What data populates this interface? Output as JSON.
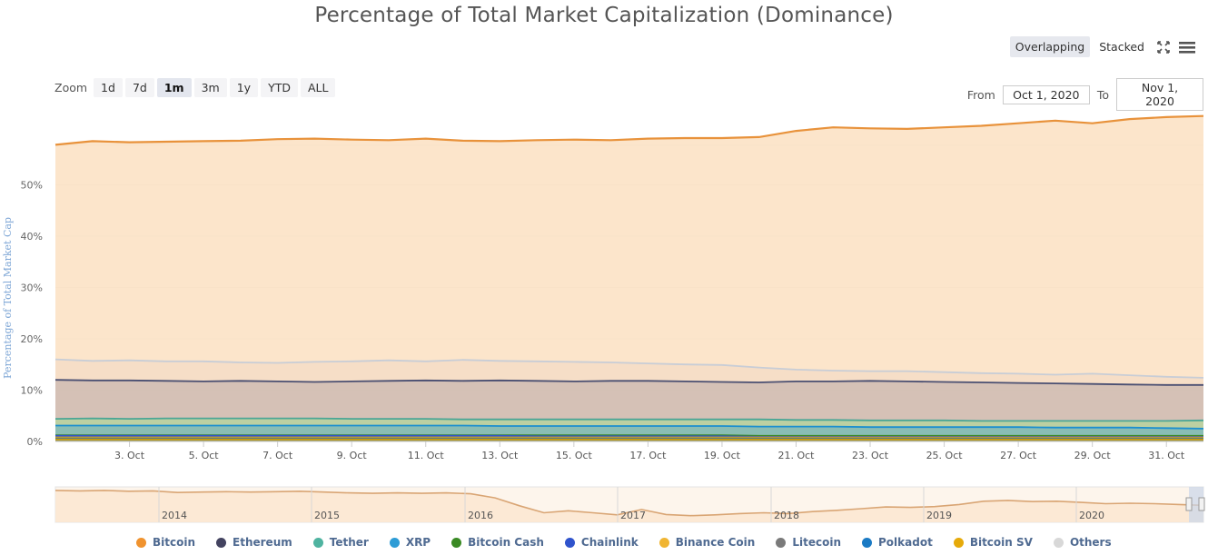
{
  "chart_data": {
    "type": "area",
    "title": "Percentage of Total Market Capitalization (Dominance)",
    "ylabel": "Percentage of Total Market Cap",
    "xlabel": "",
    "ylim": [
      0,
      63
    ],
    "x_ticks": [
      "3. Oct",
      "5. Oct",
      "7. Oct",
      "9. Oct",
      "11. Oct",
      "13. Oct",
      "15. Oct",
      "17. Oct",
      "19. Oct",
      "21. Oct",
      "23. Oct",
      "25. Oct",
      "27. Oct",
      "29. Oct",
      "31. Oct"
    ],
    "y_ticks": [
      "0%",
      "10%",
      "20%",
      "30%",
      "40%",
      "50%"
    ],
    "x": [
      "Oct 1",
      "Oct 2",
      "Oct 3",
      "Oct 4",
      "Oct 5",
      "Oct 6",
      "Oct 7",
      "Oct 8",
      "Oct 9",
      "Oct 10",
      "Oct 11",
      "Oct 12",
      "Oct 13",
      "Oct 14",
      "Oct 15",
      "Oct 16",
      "Oct 17",
      "Oct 18",
      "Oct 19",
      "Oct 20",
      "Oct 21",
      "Oct 22",
      "Oct 23",
      "Oct 24",
      "Oct 25",
      "Oct 26",
      "Oct 27",
      "Oct 28",
      "Oct 29",
      "Oct 30",
      "Oct 31",
      "Nov 1"
    ],
    "series": [
      {
        "name": "Bitcoin",
        "color": "#f7a35c",
        "line": "#e8923b",
        "values": [
          57.8,
          58.5,
          58.3,
          58.4,
          58.5,
          58.6,
          58.9,
          59.0,
          58.8,
          58.7,
          59.0,
          58.6,
          58.5,
          58.7,
          58.8,
          58.7,
          59.0,
          59.1,
          59.1,
          59.3,
          60.5,
          61.2,
          61.0,
          60.9,
          61.2,
          61.5,
          62.0,
          62.5,
          62.0,
          62.8,
          63.2,
          63.4
        ]
      },
      {
        "name": "Others",
        "color": "#d8d8d8",
        "line": "#c8cdd6",
        "values": [
          16.0,
          15.7,
          15.8,
          15.6,
          15.6,
          15.4,
          15.3,
          15.5,
          15.6,
          15.8,
          15.6,
          15.9,
          15.7,
          15.6,
          15.5,
          15.4,
          15.2,
          15.0,
          14.9,
          14.4,
          14.0,
          13.8,
          13.7,
          13.7,
          13.5,
          13.3,
          13.2,
          13.0,
          13.2,
          12.9,
          12.6,
          12.4
        ]
      },
      {
        "name": "Ethereum",
        "color": "#434348",
        "line": "#4a4f72",
        "values": [
          12.0,
          11.9,
          11.9,
          11.8,
          11.7,
          11.8,
          11.7,
          11.6,
          11.7,
          11.8,
          11.9,
          11.8,
          11.9,
          11.8,
          11.7,
          11.8,
          11.8,
          11.7,
          11.6,
          11.5,
          11.7,
          11.7,
          11.8,
          11.7,
          11.6,
          11.5,
          11.4,
          11.3,
          11.2,
          11.1,
          11.0,
          11.0
        ]
      },
      {
        "name": "Tether",
        "color": "#90ed7d",
        "line": "#4aa695",
        "values": [
          4.4,
          4.5,
          4.4,
          4.5,
          4.5,
          4.5,
          4.5,
          4.5,
          4.4,
          4.4,
          4.4,
          4.3,
          4.3,
          4.3,
          4.3,
          4.3,
          4.3,
          4.3,
          4.3,
          4.3,
          4.2,
          4.2,
          4.1,
          4.1,
          4.1,
          4.0,
          4.0,
          4.0,
          4.0,
          4.0,
          4.0,
          4.1
        ]
      },
      {
        "name": "XRP",
        "color": "#2d9cd6",
        "line": "#1c8fcf",
        "values": [
          3.1,
          3.1,
          3.1,
          3.1,
          3.1,
          3.1,
          3.1,
          3.1,
          3.1,
          3.1,
          3.1,
          3.1,
          3.0,
          3.0,
          3.0,
          3.0,
          3.0,
          3.0,
          3.0,
          2.9,
          2.9,
          2.9,
          2.8,
          2.8,
          2.8,
          2.8,
          2.8,
          2.7,
          2.7,
          2.7,
          2.6,
          2.5
        ]
      },
      {
        "name": "Bitcoin Cash",
        "color": "#4a9a2e",
        "line": "#3a8a24",
        "values": [
          1.2,
          1.2,
          1.2,
          1.2,
          1.2,
          1.2,
          1.2,
          1.2,
          1.2,
          1.2,
          1.2,
          1.2,
          1.2,
          1.2,
          1.2,
          1.2,
          1.2,
          1.2,
          1.2,
          1.1,
          1.1,
          1.1,
          1.1,
          1.1,
          1.1,
          1.1,
          1.1,
          1.1,
          1.1,
          1.1,
          1.1,
          1.1
        ]
      },
      {
        "name": "Chainlink",
        "color": "#3b5fd9",
        "line": "#2f53cc",
        "values": [
          1.1,
          1.1,
          1.1,
          1.1,
          1.1,
          1.1,
          1.1,
          1.1,
          1.1,
          1.1,
          1.1,
          1.1,
          1.1,
          1.0,
          1.0,
          1.0,
          1.0,
          1.0,
          1.0,
          0.9,
          0.9,
          0.9,
          0.9,
          0.9,
          0.9,
          0.9,
          0.9,
          0.9,
          0.9,
          0.9,
          0.9,
          0.9
        ]
      },
      {
        "name": "Binance Coin",
        "color": "#e8b931",
        "line": "#d4a51f",
        "values": [
          0.8,
          0.8,
          0.8,
          0.8,
          0.8,
          0.8,
          0.8,
          0.8,
          0.8,
          0.8,
          0.8,
          0.8,
          0.8,
          0.8,
          0.8,
          0.8,
          0.8,
          0.8,
          0.8,
          0.8,
          0.8,
          0.8,
          0.8,
          0.8,
          0.8,
          0.8,
          0.8,
          0.8,
          0.8,
          0.8,
          0.8,
          0.8
        ]
      },
      {
        "name": "Litecoin",
        "color": "#7a7a7a",
        "line": "#6a6a6a",
        "values": [
          0.6,
          0.6,
          0.6,
          0.6,
          0.6,
          0.6,
          0.6,
          0.6,
          0.6,
          0.6,
          0.6,
          0.6,
          0.6,
          0.6,
          0.6,
          0.6,
          0.6,
          0.6,
          0.6,
          0.6,
          0.6,
          0.6,
          0.6,
          0.6,
          0.6,
          0.6,
          0.6,
          0.6,
          0.6,
          0.6,
          0.6,
          0.6
        ]
      },
      {
        "name": "Polkadot",
        "color": "#1a7ac4",
        "line": "#1a7ac4",
        "values": [
          0.5,
          0.5,
          0.5,
          0.5,
          0.5,
          0.5,
          0.5,
          0.5,
          0.5,
          0.5,
          0.5,
          0.5,
          0.5,
          0.5,
          0.5,
          0.5,
          0.5,
          0.5,
          0.5,
          0.5,
          0.5,
          0.5,
          0.5,
          0.5,
          0.5,
          0.5,
          0.5,
          0.5,
          0.5,
          0.5,
          0.5,
          0.5
        ]
      },
      {
        "name": "Bitcoin SV",
        "color": "#e0ab10",
        "line": "#cc9a08",
        "values": [
          0.4,
          0.4,
          0.4,
          0.4,
          0.4,
          0.4,
          0.4,
          0.4,
          0.4,
          0.4,
          0.4,
          0.4,
          0.4,
          0.4,
          0.4,
          0.4,
          0.4,
          0.4,
          0.4,
          0.4,
          0.4,
          0.4,
          0.4,
          0.4,
          0.4,
          0.4,
          0.4,
          0.4,
          0.4,
          0.4,
          0.4,
          0.4
        ]
      }
    ],
    "legend_placement": "bottom",
    "grid": true,
    "navigator": {
      "years": [
        "2014",
        "2015",
        "2016",
        "2017",
        "2018",
        "2019",
        "2020"
      ],
      "bitcoin_dominance": [
        94,
        93,
        94,
        92,
        93,
        89,
        90,
        91,
        90,
        91,
        92,
        90,
        88,
        87,
        88,
        87,
        88,
        86,
        76,
        57,
        40,
        45,
        40,
        35,
        48,
        36,
        33,
        35,
        38,
        40,
        38,
        43,
        46,
        50,
        54,
        53,
        55,
        60,
        68,
        70,
        67,
        68,
        65,
        62,
        63,
        62,
        60,
        58
      ]
    }
  },
  "controls": {
    "zoom_label": "Zoom",
    "zoom_buttons": [
      "1d",
      "7d",
      "1m",
      "3m",
      "1y",
      "YTD",
      "ALL"
    ],
    "zoom_active": "1m",
    "modes": [
      "Overlapping",
      "Stacked"
    ],
    "mode_active": "Overlapping",
    "from_label": "From",
    "from_value": "Oct 1, 2020",
    "to_label": "To",
    "to_value": "Nov 1, 2020"
  },
  "icons": {
    "fullscreen": "expand-icon",
    "menu": "hamburger-menu-icon"
  }
}
